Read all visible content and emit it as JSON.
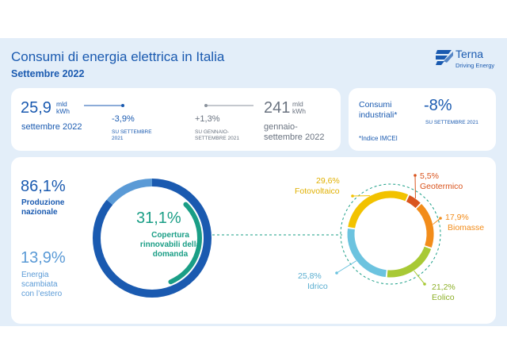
{
  "header": {
    "title": "Consumi di energia elettrica in Italia",
    "subtitle": "Settembre 2022",
    "logo_text": "Terna",
    "logo_tagline": "Driving Energy"
  },
  "stats": {
    "monthly_value": "25,9",
    "monthly_unit_line1": "mld",
    "monthly_unit_line2": "kWh",
    "monthly_period": "settembre 2022",
    "monthly_change": "-3,9%",
    "monthly_change_note_line1": "SU SETTEMBRE",
    "monthly_change_note_line2": "2021",
    "ytd_change": "+1,3%",
    "ytd_change_note_line1": "SU GENNAIO-",
    "ytd_change_note_line2": "SETTEMBRE 2021",
    "ytd_value": "241",
    "ytd_unit_line1": "mld",
    "ytd_unit_line2": "kWh",
    "ytd_period_line1": "gennaio-",
    "ytd_period_line2": "settembre 2022"
  },
  "industrial": {
    "label_line1": "Consumi",
    "label_line2": "industriali*",
    "value": "-8%",
    "note": "SU SETTEMBRE 2021",
    "footnote": "*Indice IMCEI"
  },
  "production": {
    "national_pct": "86,1%",
    "national_label_line1": "Produzione",
    "national_label_line2": "nazionale",
    "abroad_pct": "13,9%",
    "abroad_label_line1": "Energia",
    "abroad_label_line2": "scambiata",
    "abroad_label_line3": "con l’estero",
    "renewables_pct": "31,1%",
    "renewables_label_line1": "Copertura",
    "renewables_label_line2": "rinnovabili della",
    "renewables_label_line3": "domanda"
  },
  "renewables_mix": [
    {
      "name": "Fotovoltaico",
      "pct": "29,6%",
      "value": 29.6,
      "color": "#f2c200"
    },
    {
      "name": "Geotermico",
      "pct": "5,5%",
      "value": 5.5,
      "color": "#d9541e"
    },
    {
      "name": "Biomasse",
      "pct": "17,9%",
      "value": 17.9,
      "color": "#f28c1a"
    },
    {
      "name": "Eolico",
      "pct": "21,2%",
      "value": 21.2,
      "color": "#a8c935"
    },
    {
      "name": "Idrico",
      "pct": "25,8%",
      "value": 25.8,
      "color": "#6cc3df"
    }
  ],
  "colors": {
    "brand_blue": "#1a5ab0",
    "teal": "#1a9e86",
    "light_blue": "#5a9ad6"
  }
}
